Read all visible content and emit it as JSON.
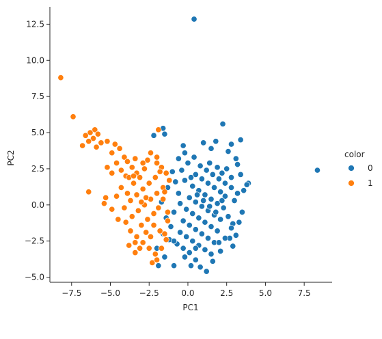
{
  "chart_data": {
    "type": "scatter",
    "title": "",
    "xlabel": "PC1",
    "ylabel": "PC2",
    "xlim": [
      -8.9,
      9.3
    ],
    "ylim": [
      -5.35,
      13.7
    ],
    "xticks": [
      -7.5,
      -5.0,
      -2.5,
      0.0,
      2.5,
      5.0,
      7.5
    ],
    "xtick_labels": [
      "−7.5",
      "−5.0",
      "−2.5",
      "0.0",
      "2.5",
      "5.0",
      "7.5"
    ],
    "yticks": [
      -5.0,
      -2.5,
      0.0,
      2.5,
      5.0,
      7.5,
      10.0,
      12.5
    ],
    "ytick_labels": [
      "−5.0",
      "−2.5",
      "0.0",
      "2.5",
      "5.0",
      "7.5",
      "10.0",
      "12.5"
    ],
    "grid": false,
    "legend": {
      "title": "color",
      "placement": "right"
    },
    "series": [
      {
        "name": "0",
        "color": "#1f77b4",
        "points": [
          [
            0.4,
            12.85
          ],
          [
            8.35,
            2.4
          ],
          [
            2.25,
            5.6
          ],
          [
            -1.6,
            5.3
          ],
          [
            -2.2,
            4.8
          ],
          [
            -1.5,
            4.9
          ],
          [
            3.4,
            4.5
          ],
          [
            1.0,
            4.3
          ],
          [
            1.8,
            4.4
          ],
          [
            -0.3,
            4.1
          ],
          [
            2.8,
            4.2
          ],
          [
            3.9,
            1.5
          ],
          [
            3.8,
            1.4
          ],
          [
            3.2,
            0.8
          ],
          [
            2.9,
            -1.3
          ],
          [
            2.7,
            -2.3
          ],
          [
            2.9,
            -2.85
          ],
          [
            2.1,
            -3.2
          ],
          [
            1.2,
            -4.6
          ],
          [
            0.8,
            -4.3
          ],
          [
            0.2,
            -4.2
          ],
          [
            -0.2,
            -3.6
          ],
          [
            -0.9,
            -4.2
          ],
          [
            -1.9,
            -4.2
          ],
          [
            -1.5,
            -3.6
          ],
          [
            -2.0,
            -3.0
          ],
          [
            1.6,
            -3.9
          ],
          [
            0.5,
            -3.8
          ],
          [
            3.2,
            2.8
          ],
          [
            3.4,
            2.1
          ],
          [
            3.6,
            1.0
          ],
          [
            3.5,
            -0.5
          ],
          [
            3.3,
            -1.2
          ],
          [
            3.1,
            -2.1
          ],
          [
            -1.4,
            -0.9
          ],
          [
            -1.7,
            0.2
          ],
          [
            -1.3,
            1.2
          ],
          [
            -1.0,
            2.3
          ],
          [
            -0.6,
            3.2
          ],
          [
            -0.2,
            3.6
          ],
          [
            1.5,
            3.9
          ],
          [
            2.6,
            3.7
          ],
          [
            3.1,
            3.2
          ],
          [
            -1.2,
            -2.4
          ],
          [
            -1.6,
            -2.0
          ],
          [
            0.5,
            2.1
          ],
          [
            0.9,
            1.8
          ],
          [
            1.3,
            1.5
          ],
          [
            1.7,
            1.2
          ],
          [
            2.1,
            0.9
          ],
          [
            2.4,
            0.6
          ],
          [
            0.3,
            1.3
          ],
          [
            0.7,
            1.0
          ],
          [
            1.1,
            0.7
          ],
          [
            1.5,
            0.4
          ],
          [
            1.9,
            0.1
          ],
          [
            2.3,
            -0.2
          ],
          [
            0.1,
            0.5
          ],
          [
            0.5,
            0.2
          ],
          [
            0.9,
            -0.1
          ],
          [
            1.3,
            -0.4
          ],
          [
            1.7,
            -0.7
          ],
          [
            2.1,
            -1.0
          ],
          [
            -0.1,
            -0.3
          ],
          [
            0.3,
            -0.6
          ],
          [
            0.7,
            -0.9
          ],
          [
            1.1,
            -1.2
          ],
          [
            1.5,
            -1.5
          ],
          [
            1.9,
            -1.8
          ],
          [
            -0.3,
            -1.1
          ],
          [
            0.1,
            -1.4
          ],
          [
            0.5,
            -1.7
          ],
          [
            0.9,
            -2.0
          ],
          [
            1.3,
            -2.3
          ],
          [
            1.7,
            -2.6
          ],
          [
            -0.5,
            -1.9
          ],
          [
            -0.1,
            -2.2
          ],
          [
            0.3,
            -2.5
          ],
          [
            0.7,
            -2.8
          ],
          [
            1.1,
            -3.1
          ],
          [
            1.5,
            -3.4
          ],
          [
            -0.7,
            -2.7
          ],
          [
            -0.3,
            -3.0
          ],
          [
            0.1,
            -3.3
          ],
          [
            0.5,
            -3.0
          ],
          [
            2.5,
            2.5
          ],
          [
            2.8,
            1.9
          ],
          [
            -0.6,
            0.8
          ],
          [
            -0.8,
            1.6
          ],
          [
            -0.4,
            2.4
          ],
          [
            0.0,
            2.9
          ],
          [
            0.4,
            3.3
          ],
          [
            0.8,
            2.7
          ],
          [
            1.2,
            2.4
          ],
          [
            1.6,
            2.1
          ],
          [
            2.0,
            1.8
          ],
          [
            2.4,
            1.5
          ],
          [
            2.8,
            1.2
          ],
          [
            3.0,
            0.3
          ],
          [
            -0.9,
            -0.5
          ],
          [
            -1.1,
            -1.5
          ],
          [
            -0.9,
            -2.5
          ],
          [
            -0.5,
            0.1
          ],
          [
            2.6,
            -0.8
          ],
          [
            2.8,
            -1.6
          ],
          [
            2.4,
            -2.3
          ],
          [
            2.0,
            -2.6
          ],
          [
            0.6,
            0.7
          ],
          [
            1.0,
            0.3
          ],
          [
            1.4,
            -0.1
          ],
          [
            1.8,
            -0.5
          ],
          [
            2.2,
            0.3
          ],
          [
            -0.2,
            1.7
          ],
          [
            0.2,
            1.9
          ],
          [
            1.4,
            2.9
          ],
          [
            1.9,
            2.6
          ],
          [
            2.2,
            2.2
          ]
        ]
      },
      {
        "name": "1",
        "color": "#ff7f0e",
        "points": [
          [
            -8.2,
            8.8
          ],
          [
            -7.4,
            6.1
          ],
          [
            -6.0,
            5.2
          ],
          [
            -6.3,
            5.0
          ],
          [
            -6.6,
            4.8
          ],
          [
            -5.8,
            4.9
          ],
          [
            -6.1,
            4.6
          ],
          [
            -6.4,
            4.4
          ],
          [
            -5.6,
            4.3
          ],
          [
            -5.2,
            4.4
          ],
          [
            -6.8,
            4.1
          ],
          [
            -5.9,
            4.0
          ],
          [
            -4.7,
            4.2
          ],
          [
            -4.4,
            3.9
          ],
          [
            -4.9,
            3.6
          ],
          [
            -4.1,
            3.3
          ],
          [
            -4.6,
            2.9
          ],
          [
            -5.2,
            2.6
          ],
          [
            -4.9,
            2.2
          ],
          [
            -4.0,
            2.0
          ],
          [
            -3.6,
            2.6
          ],
          [
            -3.3,
            2.2
          ],
          [
            -6.4,
            0.9
          ],
          [
            -5.3,
            0.5
          ],
          [
            -5.4,
            0.1
          ],
          [
            -4.9,
            -0.3
          ],
          [
            -4.6,
            0.6
          ],
          [
            -4.3,
            1.2
          ],
          [
            -3.9,
            0.8
          ],
          [
            -3.5,
            1.5
          ],
          [
            -3.1,
            1.9
          ],
          [
            -2.8,
            2.5
          ],
          [
            -2.6,
            3.1
          ],
          [
            -2.4,
            3.6
          ],
          [
            -2.0,
            3.3
          ],
          [
            -1.7,
            2.6
          ],
          [
            -1.4,
            2.2
          ],
          [
            -1.2,
            1.7
          ],
          [
            -1.6,
            1.2
          ],
          [
            -2.0,
            0.8
          ],
          [
            -2.4,
            0.4
          ],
          [
            -2.8,
            0.0
          ],
          [
            -3.2,
            -0.4
          ],
          [
            -3.6,
            -0.8
          ],
          [
            -4.0,
            -1.2
          ],
          [
            -3.7,
            -1.8
          ],
          [
            -3.3,
            -2.2
          ],
          [
            -2.9,
            -2.6
          ],
          [
            -2.5,
            -3.0
          ],
          [
            -2.1,
            -3.4
          ],
          [
            -1.7,
            -3.0
          ],
          [
            -1.4,
            -2.4
          ],
          [
            -1.8,
            -1.8
          ],
          [
            -2.2,
            -1.4
          ],
          [
            -2.6,
            -1.0
          ],
          [
            -3.0,
            -1.4
          ],
          [
            -3.4,
            -2.6
          ],
          [
            -3.8,
            -2.8
          ],
          [
            -2.3,
            -4.0
          ],
          [
            -2.0,
            -3.8
          ],
          [
            -3.4,
            -3.3
          ],
          [
            -4.1,
            -0.2
          ],
          [
            -3.7,
            0.3
          ],
          [
            -3.3,
            0.7
          ],
          [
            -2.9,
            1.1
          ],
          [
            -2.5,
            1.5
          ],
          [
            -2.1,
            1.9
          ],
          [
            -1.8,
            2.3
          ],
          [
            -2.9,
            2.9
          ],
          [
            -3.4,
            3.2
          ],
          [
            -3.9,
            3.0
          ],
          [
            -4.3,
            2.4
          ],
          [
            -3.8,
            1.9
          ],
          [
            -2.2,
            -0.6
          ],
          [
            -1.9,
            -0.2
          ],
          [
            -1.6,
            0.4
          ],
          [
            -1.3,
            -1.1
          ],
          [
            -1.5,
            -2.0
          ],
          [
            -2.7,
            -1.9
          ],
          [
            -3.1,
            -3.0
          ],
          [
            -2.4,
            -2.2
          ],
          [
            -1.9,
            5.2
          ],
          [
            -4.5,
            -1.0
          ],
          [
            -2.0,
            2.9
          ],
          [
            -3.5,
            2.0
          ],
          [
            -2.7,
            0.5
          ],
          [
            -3.0,
            0.2
          ],
          [
            -1.5,
            0.9
          ],
          [
            -1.3,
            -0.5
          ]
        ]
      }
    ]
  }
}
